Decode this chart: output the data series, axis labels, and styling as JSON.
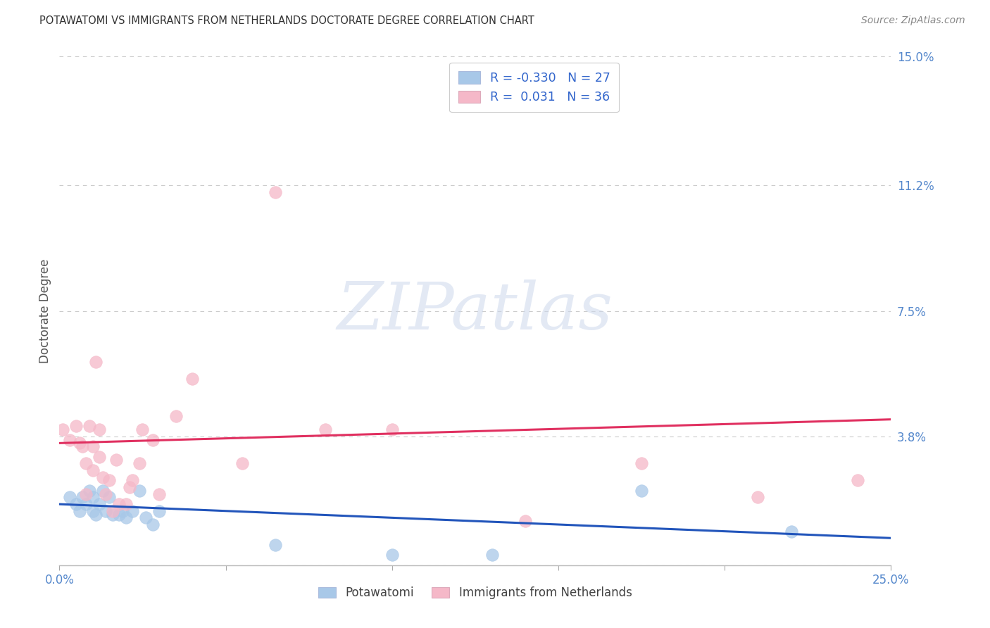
{
  "title": "POTAWATOMI VS IMMIGRANTS FROM NETHERLANDS DOCTORATE DEGREE CORRELATION CHART",
  "source": "Source: ZipAtlas.com",
  "ylabel": "Doctorate Degree",
  "xlim": [
    0.0,
    0.25
  ],
  "ylim": [
    0.0,
    0.15
  ],
  "ytick_positions": [
    0.0,
    0.038,
    0.075,
    0.112,
    0.15
  ],
  "ytick_labels": [
    "",
    "3.8%",
    "7.5%",
    "11.2%",
    "15.0%"
  ],
  "xtick_positions": [
    0.0,
    0.05,
    0.1,
    0.15,
    0.2,
    0.25
  ],
  "xtick_labels": [
    "0.0%",
    "",
    "",
    "",
    "",
    "25.0%"
  ],
  "blue_scatter_color": "#a8c8e8",
  "pink_scatter_color": "#f5b8c8",
  "blue_line_color": "#2255bb",
  "pink_line_color": "#e03060",
  "legend_text_color": "#3366cc",
  "ytick_color": "#5588cc",
  "xtick_color": "#5588cc",
  "grid_color": "#cccccc",
  "legend_blue_r": "-0.330",
  "legend_blue_n": "27",
  "legend_pink_r": "0.031",
  "legend_pink_n": "36",
  "watermark_text": "ZIPatlas",
  "blue_scatter_x": [
    0.003,
    0.005,
    0.006,
    0.007,
    0.008,
    0.009,
    0.01,
    0.01,
    0.011,
    0.012,
    0.013,
    0.014,
    0.015,
    0.016,
    0.018,
    0.019,
    0.02,
    0.022,
    0.024,
    0.026,
    0.028,
    0.03,
    0.065,
    0.1,
    0.13,
    0.175,
    0.22
  ],
  "blue_scatter_y": [
    0.02,
    0.018,
    0.016,
    0.02,
    0.018,
    0.022,
    0.016,
    0.02,
    0.015,
    0.018,
    0.022,
    0.016,
    0.02,
    0.015,
    0.015,
    0.016,
    0.014,
    0.016,
    0.022,
    0.014,
    0.012,
    0.016,
    0.006,
    0.003,
    0.003,
    0.022,
    0.01
  ],
  "pink_scatter_x": [
    0.001,
    0.003,
    0.005,
    0.006,
    0.007,
    0.008,
    0.008,
    0.009,
    0.01,
    0.01,
    0.011,
    0.012,
    0.012,
    0.013,
    0.014,
    0.015,
    0.016,
    0.017,
    0.018,
    0.02,
    0.021,
    0.022,
    0.024,
    0.025,
    0.028,
    0.03,
    0.035,
    0.04,
    0.055,
    0.065,
    0.08,
    0.1,
    0.14,
    0.175,
    0.21,
    0.24
  ],
  "pink_scatter_y": [
    0.04,
    0.037,
    0.041,
    0.036,
    0.035,
    0.03,
    0.021,
    0.041,
    0.035,
    0.028,
    0.06,
    0.04,
    0.032,
    0.026,
    0.021,
    0.025,
    0.016,
    0.031,
    0.018,
    0.018,
    0.023,
    0.025,
    0.03,
    0.04,
    0.037,
    0.021,
    0.044,
    0.055,
    0.03,
    0.11,
    0.04,
    0.04,
    0.013,
    0.03,
    0.02,
    0.025
  ],
  "blue_trend_start_y": 0.018,
  "blue_trend_end_y": 0.008,
  "pink_trend_start_y": 0.036,
  "pink_trend_end_y": 0.043
}
